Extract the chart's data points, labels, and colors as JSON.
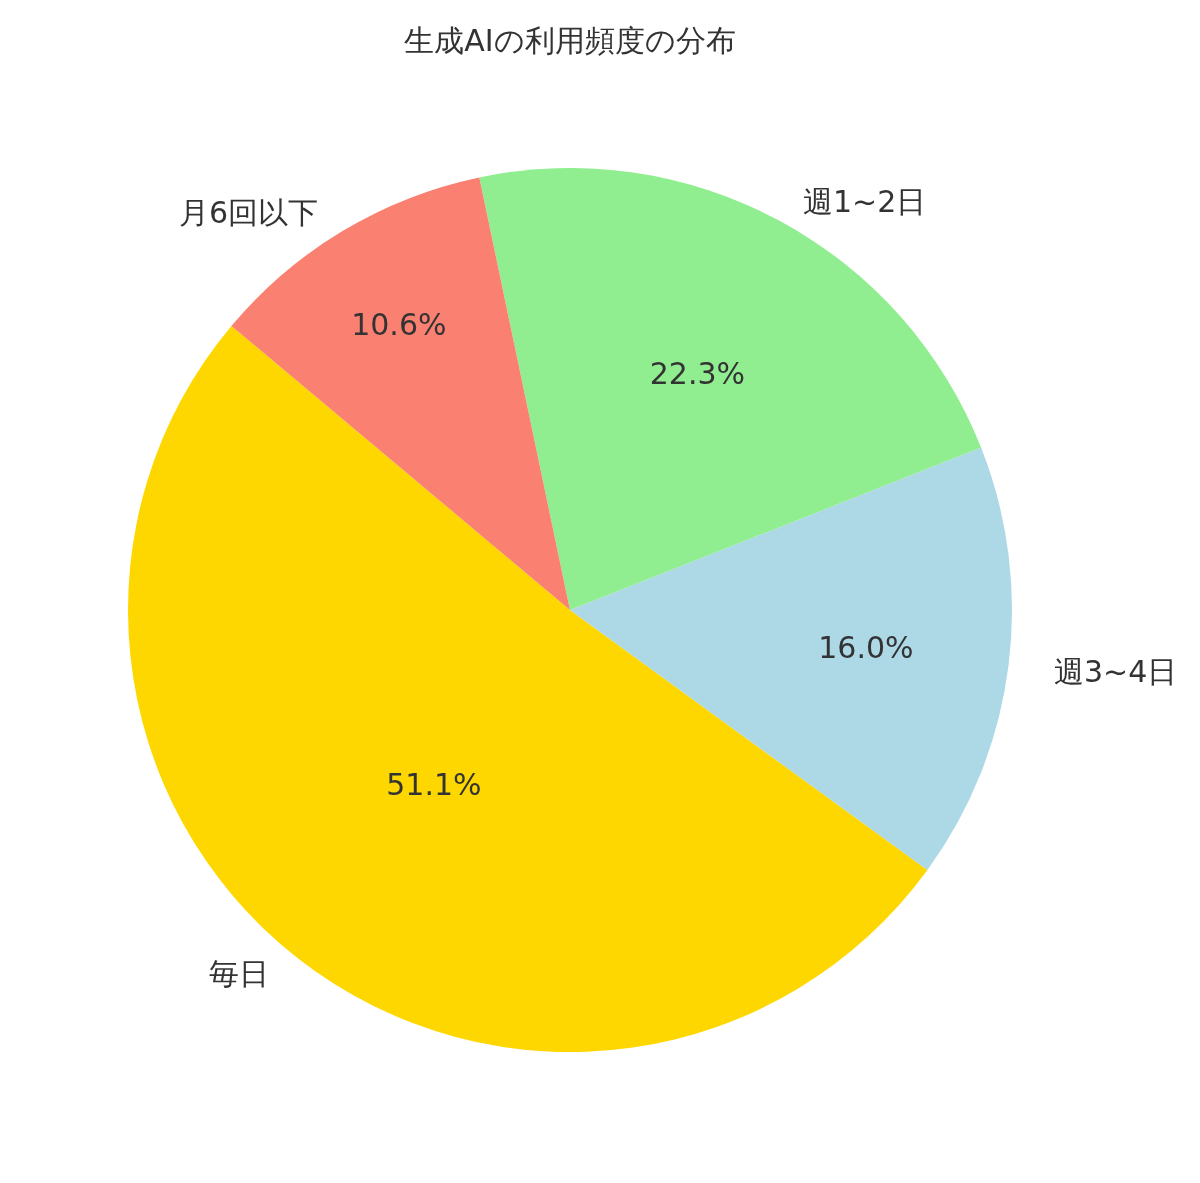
{
  "chart_data": {
    "type": "pie",
    "title": "生成AIの利用頻度の分布",
    "categories": [
      "毎日",
      "週3~4日",
      "週1~2日",
      "月6回以下"
    ],
    "values": [
      51.1,
      16.0,
      22.3,
      10.6
    ],
    "value_labels": [
      "51.1%",
      "16.0%",
      "22.3%",
      "10.6%"
    ],
    "colors": [
      "#ffd700",
      "#add8e6",
      "#90ee90",
      "#fa8072"
    ],
    "legend": false
  }
}
